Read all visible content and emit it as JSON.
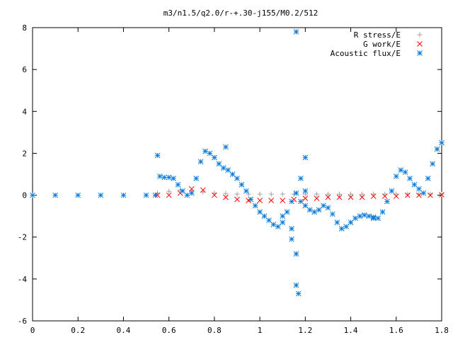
{
  "chart_data": {
    "type": "scatter",
    "title": "m3/n1.5/q2.0/r-+.30-j155/M0.2/512",
    "xlabel": "",
    "ylabel": "",
    "xlim": [
      0,
      1.8
    ],
    "ylim": [
      -6,
      8
    ],
    "x_ticks": [
      "0",
      "0.2",
      "0.4",
      "0.6",
      "0.8",
      "1",
      "1.2",
      "1.4",
      "1.6",
      "1.8"
    ],
    "y_ticks": [
      "-6",
      "-4",
      "-2",
      "0",
      "2",
      "4",
      "6",
      "8"
    ],
    "grid": false,
    "legend_position": "top-right",
    "series": [
      {
        "name": "R stress/E",
        "marker": "plus",
        "color": "#a0a0a0",
        "x": [
          0.55,
          0.6,
          0.65,
          0.7,
          0.75,
          0.8,
          0.85,
          0.9,
          0.95,
          1.0,
          1.05,
          1.1,
          1.15,
          1.2,
          1.25,
          1.3,
          1.35,
          1.4,
          1.45,
          1.5,
          1.55,
          1.6,
          1.65,
          1.7,
          1.75,
          1.8
        ],
        "y": [
          0.1,
          0.18,
          0.25,
          0.2,
          0.15,
          0.1,
          0.08,
          0.05,
          0.05,
          0.05,
          0.05,
          0.05,
          0.05,
          0.05,
          0.05,
          0.05,
          0.05,
          0.05,
          0.05,
          0.05,
          0.05,
          0.05,
          0.05,
          0.05,
          0.05,
          0.05
        ]
      },
      {
        "name": "G work/E",
        "marker": "cross",
        "color": "#ff0000",
        "x": [
          0.55,
          0.6,
          0.65,
          0.7,
          0.75,
          0.8,
          0.85,
          0.9,
          0.95,
          1.0,
          1.05,
          1.1,
          1.15,
          1.2,
          1.25,
          1.3,
          1.35,
          1.4,
          1.45,
          1.5,
          1.55,
          1.6,
          1.65,
          1.7,
          1.75,
          1.8
        ],
        "y": [
          0.0,
          0.0,
          0.1,
          0.3,
          0.25,
          0.0,
          -0.1,
          -0.2,
          -0.25,
          -0.25,
          -0.25,
          -0.25,
          -0.2,
          -0.15,
          -0.15,
          -0.1,
          -0.1,
          -0.1,
          -0.1,
          -0.05,
          -0.05,
          -0.05,
          0.0,
          0.0,
          0.0,
          0.02
        ]
      },
      {
        "name": "Acoustic flux/E",
        "marker": "star",
        "color": "#0a7ad8",
        "x": [
          0.55,
          0.56,
          0.58,
          0.6,
          0.62,
          0.64,
          0.66,
          0.68,
          0.7,
          0.72,
          0.74,
          0.76,
          0.78,
          0.8,
          0.82,
          0.84,
          0.86,
          0.88,
          0.9,
          0.92,
          0.94,
          0.96,
          0.98,
          1.0,
          1.02,
          1.04,
          1.06,
          1.08,
          1.1,
          1.12,
          1.14,
          1.16,
          1.18,
          1.2,
          1.22,
          1.24,
          1.26,
          1.28,
          1.3,
          1.32,
          1.34,
          1.36,
          1.38,
          1.4,
          1.42,
          1.44,
          1.46,
          1.48,
          1.5,
          1.52,
          1.54,
          1.56,
          1.58,
          1.6,
          1.62,
          1.64,
          1.66,
          1.68,
          1.7,
          1.72,
          1.74,
          1.76,
          1.78,
          1.8,
          0.85,
          1.16,
          1.16,
          1.17,
          1.2,
          1.16,
          1.14,
          1.14,
          1.1,
          1.18,
          1.2,
          1.5
        ],
        "y": [
          1.9,
          0.9,
          0.85,
          0.85,
          0.8,
          0.5,
          0.2,
          0.0,
          0.1,
          0.8,
          1.6,
          2.1,
          2.0,
          1.8,
          1.5,
          1.3,
          1.2,
          1.0,
          0.8,
          0.5,
          0.2,
          -0.2,
          -0.5,
          -0.8,
          -1.0,
          -1.2,
          -1.4,
          -1.5,
          -1.3,
          -0.8,
          -0.3,
          0.1,
          -0.3,
          -0.5,
          -0.7,
          -0.8,
          -0.7,
          -0.5,
          -0.6,
          -0.9,
          -1.3,
          -1.6,
          -1.5,
          -1.3,
          -1.1,
          -1.0,
          -0.95,
          -1.0,
          -1.05,
          -1.1,
          -0.8,
          -0.3,
          0.2,
          0.9,
          1.2,
          1.1,
          0.8,
          0.5,
          0.3,
          0.1,
          0.8,
          1.5,
          2.2,
          2.5,
          2.3,
          7.8,
          -4.3,
          -4.7,
          1.8,
          -2.8,
          -2.1,
          -1.6,
          -1.0,
          0.8,
          0.2,
          -1.1
        ]
      },
      {
        "name": "",
        "marker": "star",
        "color": "#0a7ad8",
        "x": [
          0.0,
          0.1,
          0.2,
          0.3,
          0.4,
          0.5,
          0.54
        ],
        "y": [
          0,
          0,
          0,
          0,
          0,
          0,
          0
        ]
      }
    ]
  }
}
